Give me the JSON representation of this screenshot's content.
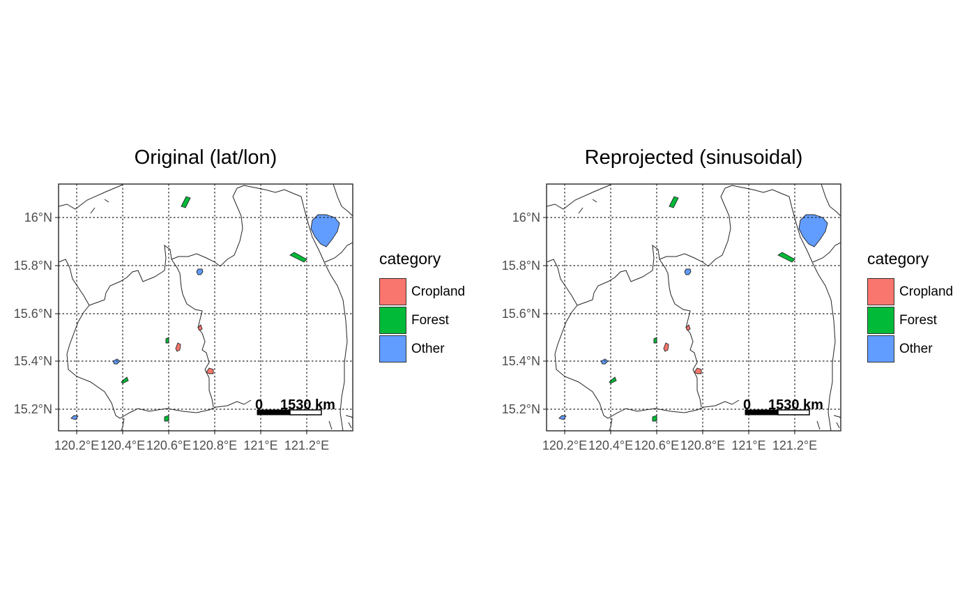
{
  "panels": [
    {
      "title": "Original (lat/lon)"
    },
    {
      "title": "Reprojected (sinusoidal)"
    }
  ],
  "axes": {
    "y_ticks": [
      "16°N",
      "15.8°N",
      "15.6°N",
      "15.4°N",
      "15.2°N"
    ],
    "x_ticks": [
      "120.2°E",
      "120.4°E",
      "120.6°E",
      "120.8°E",
      "121°E",
      "121.2°E"
    ],
    "grid": "dotted"
  },
  "legend": {
    "title": "category",
    "items": [
      {
        "label": "Cropland",
        "color": "#F8766D"
      },
      {
        "label": "Forest",
        "color": "#00BA38"
      },
      {
        "label": "Other",
        "color": "#619CFF"
      }
    ]
  },
  "scale_bar": {
    "zero": "0",
    "label": "1530 km"
  }
}
